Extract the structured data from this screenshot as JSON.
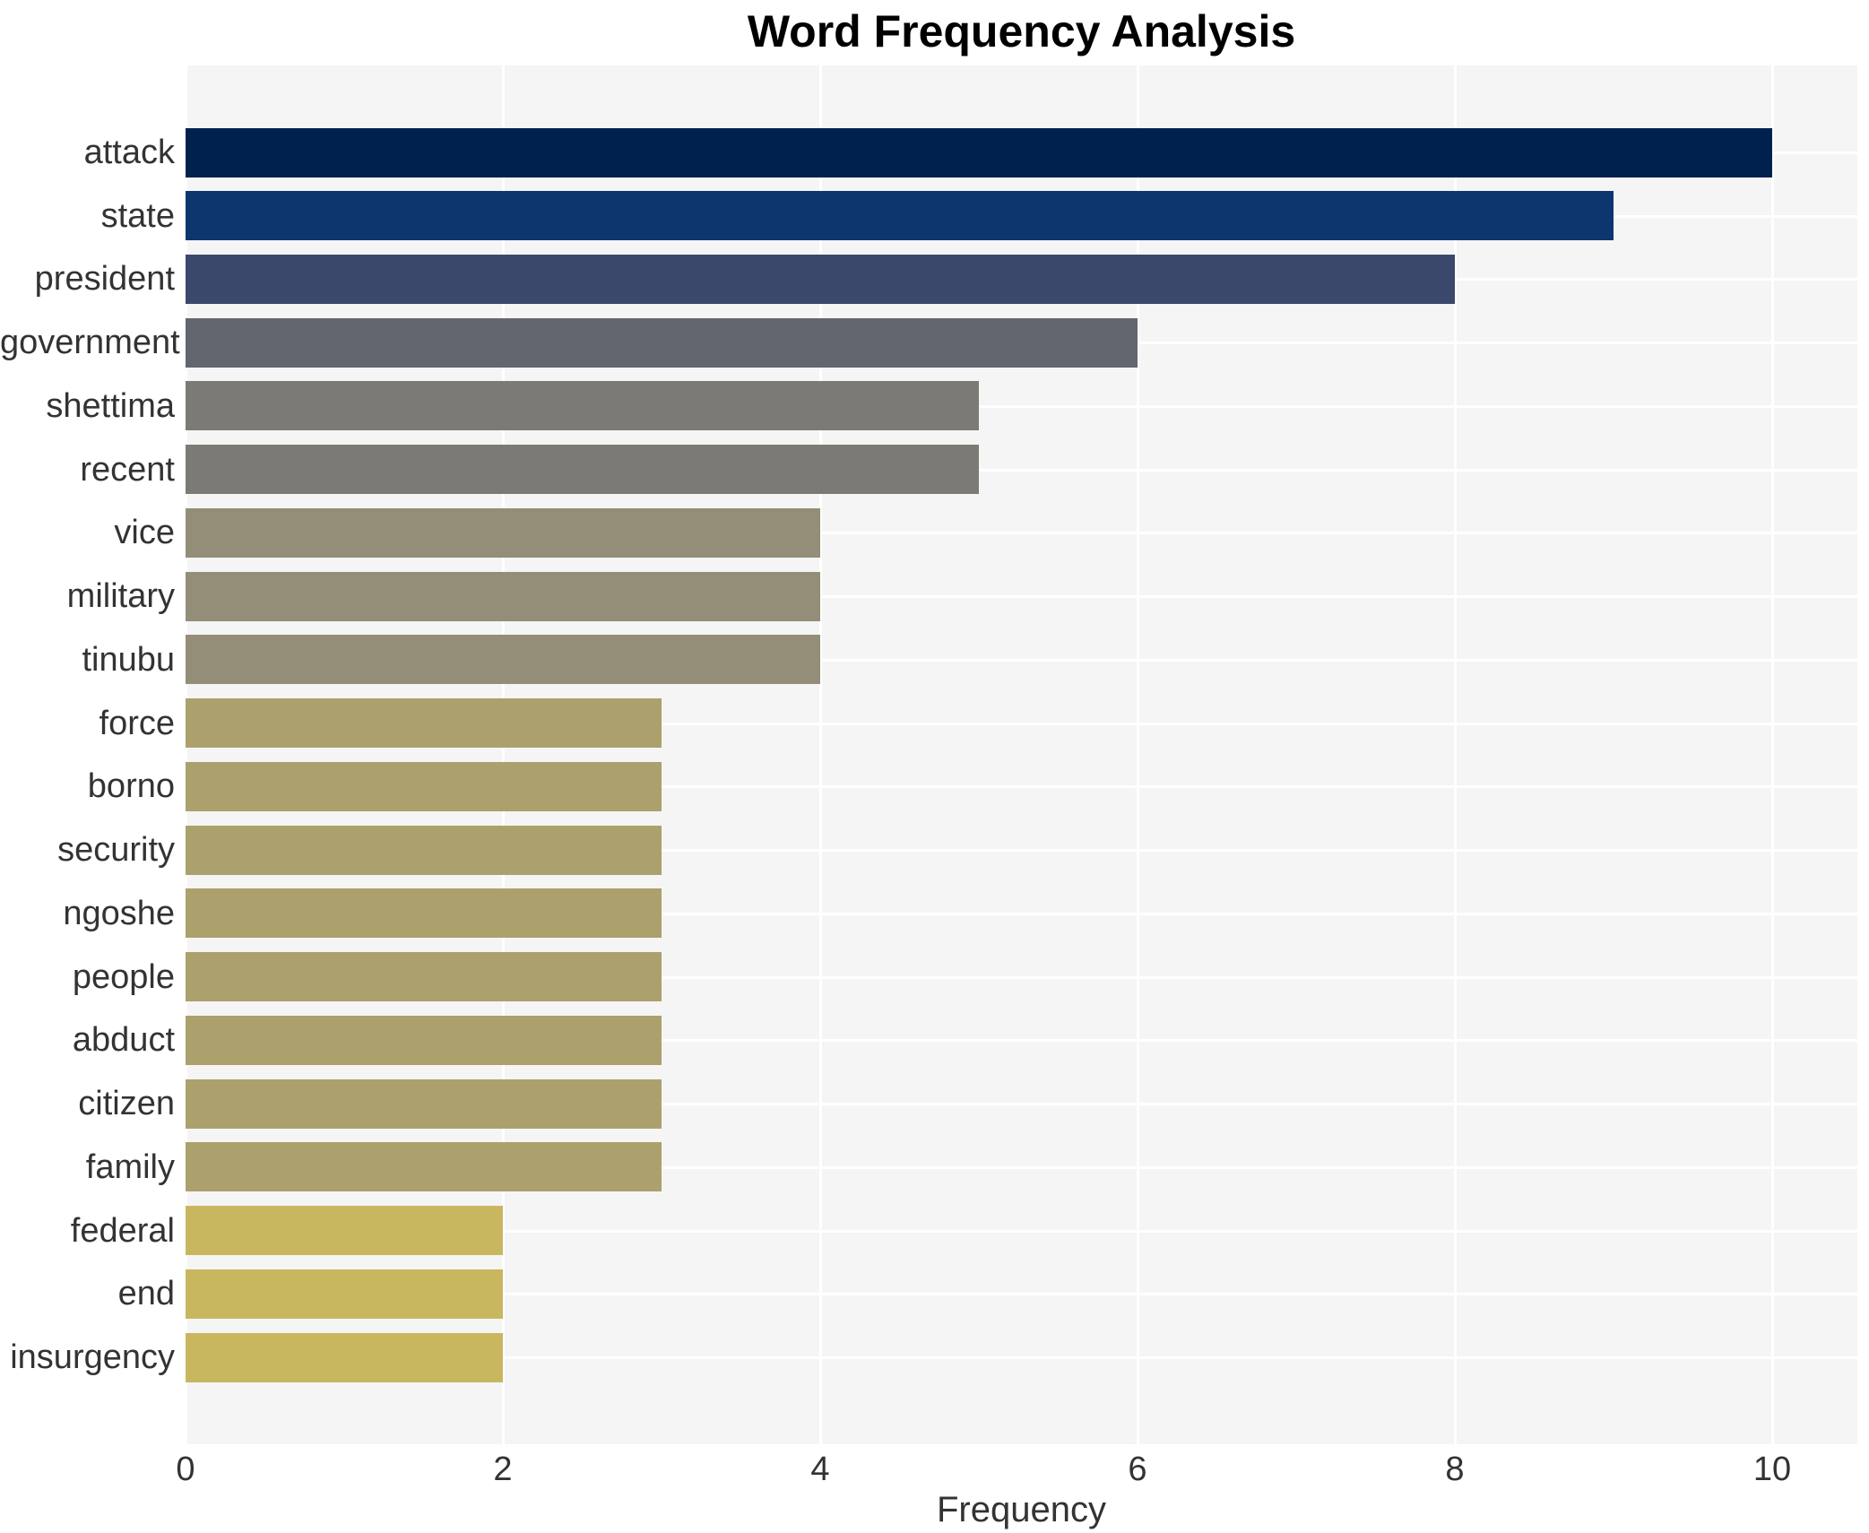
{
  "chart_data": {
    "type": "bar",
    "orientation": "horizontal",
    "title": "Word Frequency Analysis",
    "xlabel": "Frequency",
    "ylabel": "",
    "categories": [
      "attack",
      "state",
      "president",
      "government",
      "shettima",
      "recent",
      "vice",
      "military",
      "tinubu",
      "force",
      "borno",
      "security",
      "ngoshe",
      "people",
      "abduct",
      "citizen",
      "family",
      "federal",
      "end",
      "insurgency"
    ],
    "values": [
      10,
      9,
      8,
      6,
      5,
      5,
      4,
      4,
      4,
      3,
      3,
      3,
      3,
      3,
      3,
      3,
      3,
      2,
      2,
      2
    ],
    "bar_colors": [
      "#00214d",
      "#0d356e",
      "#3a486b",
      "#63666f",
      "#7b7a74",
      "#7b7a74",
      "#948d77",
      "#948d77",
      "#948d77",
      "#aca16c",
      "#aca16c",
      "#aca16c",
      "#aca16c",
      "#aca16c",
      "#aca16c",
      "#aca16c",
      "#aca16c",
      "#c9b75f",
      "#c9b75f",
      "#c9b75f"
    ],
    "xticks": [
      0,
      2,
      4,
      6,
      8,
      10
    ],
    "xlim": [
      0,
      10.54
    ],
    "grid": true,
    "legend_position": "none",
    "plot_background": "#f5f5f6",
    "gridline_color": "#ffffff",
    "title_color": "#000000",
    "axis_text_color": "#333333"
  }
}
